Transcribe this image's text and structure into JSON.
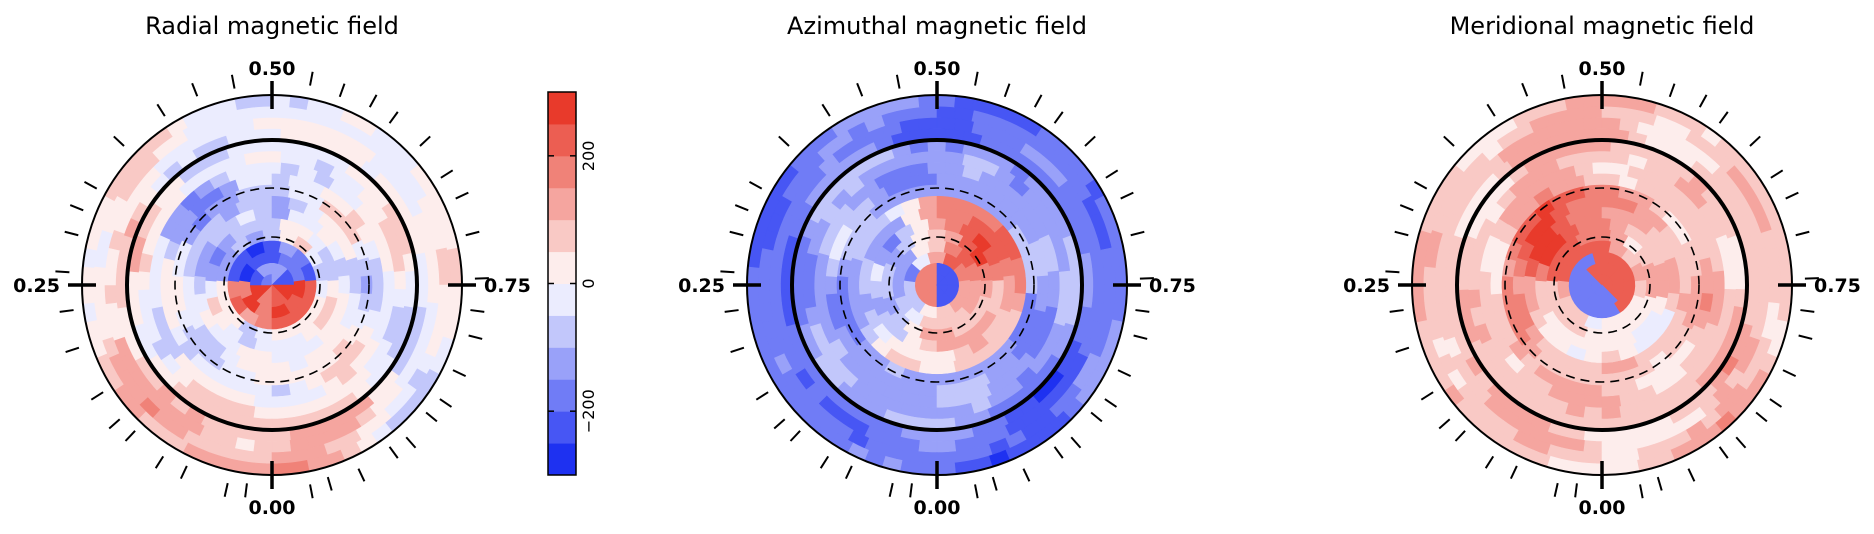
{
  "chart_data": [
    {
      "type": "heatmap",
      "projection": "polar map",
      "title": "Radial magnetic field",
      "phase_labels": {
        "top": "0.50",
        "bottom": "0.00",
        "left": "0.25",
        "right": "0.75"
      },
      "pattern": "radial"
    },
    {
      "type": "heatmap",
      "projection": "polar map",
      "title": "Azimuthal magnetic field",
      "phase_labels": {
        "top": "0.50",
        "bottom": "0.00",
        "left": "0.25",
        "right": "0.75"
      },
      "pattern": "azimuthal"
    },
    {
      "type": "heatmap",
      "projection": "polar map",
      "title": "Meridional magnetic field",
      "phase_labels": {
        "top": "0.50",
        "bottom": "0.00",
        "left": "0.25",
        "right": "0.75"
      },
      "pattern": "meridional"
    }
  ],
  "colorbar": {
    "range": [
      -300,
      300
    ],
    "ticks": [
      -200,
      0,
      200
    ],
    "tick_labels": [
      "−200",
      "0",
      "200"
    ],
    "levels": 12,
    "colors": {
      "negative_max": "#0a1ef0",
      "neutral": "#ffffff",
      "positive_max": "#e62818"
    }
  },
  "observation_phases": [
    0.02,
    0.035,
    0.07,
    0.09,
    0.12,
    0.135,
    0.16,
    0.2,
    0.23,
    0.26,
    0.29,
    0.31,
    0.33,
    0.37,
    0.41,
    0.44,
    0.47,
    0.53,
    0.555,
    0.58,
    0.6,
    0.63,
    0.66,
    0.68,
    0.71,
    0.745,
    0.77,
    0.79,
    0.82,
    0.845,
    0.86,
    0.885,
    0.9,
    0.93,
    0.955,
    0.97
  ]
}
